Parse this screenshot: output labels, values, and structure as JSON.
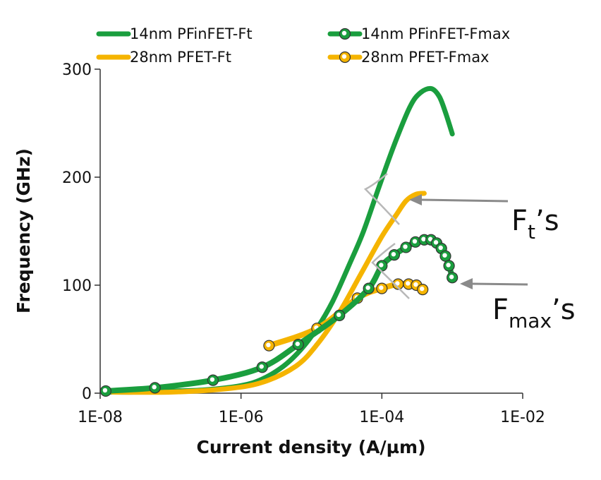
{
  "chart_data": {
    "type": "line",
    "xscale": "log",
    "xlim": [
      "1E-08",
      "1E-02"
    ],
    "ylim": [
      0,
      300
    ],
    "xlabel": "Current density (A/µm)",
    "ylabel": "Frequency (GHz)",
    "xticks": [
      "1E-08",
      "1E-06",
      "1E-04",
      "1E-02"
    ],
    "yticks": [
      "0",
      "100",
      "200",
      "300"
    ],
    "grid": false,
    "legend_position": "top",
    "series": [
      {
        "name": "14nm PFinFET-Ft",
        "color": "#1a9e3e",
        "markers": false,
        "x": [
          1.2e-08,
          3e-08,
          1e-07,
          3e-07,
          1e-06,
          2e-06,
          4e-06,
          7e-06,
          1.2e-05,
          2e-05,
          3.5e-05,
          5.5e-05,
          9e-05,
          0.00015,
          0.00025,
          0.00035,
          0.0005,
          0.00065,
          0.0008,
          0.001
        ],
        "y": [
          1,
          1,
          2,
          3,
          7,
          13,
          25,
          40,
          60,
          85,
          120,
          150,
          190,
          230,
          265,
          278,
          282,
          275,
          260,
          240
        ]
      },
      {
        "name": "14nm PFinFET-Fmax",
        "color": "#1a9e3e",
        "markers": true,
        "x": [
          1.2e-08,
          6e-08,
          4e-07,
          2e-06,
          6.5e-06,
          2.5e-05,
          6.5e-05,
          0.0001,
          0.00015,
          0.00022,
          0.0003,
          0.0004,
          0.0005,
          0.0006,
          0.0007,
          0.0008,
          0.0009,
          0.001
        ],
        "y": [
          2,
          5,
          12,
          24,
          45,
          72,
          97,
          118,
          128,
          135,
          140,
          142,
          142,
          139,
          134,
          127,
          118,
          107
        ]
      },
      {
        "name": "28nm PFET-Ft",
        "color": "#f5b400",
        "markers": false,
        "x": [
          1.5e-08,
          1e-07,
          6e-07,
          2e-06,
          6e-06,
          1.2e-05,
          2.5e-05,
          5e-05,
          0.0001,
          0.00016,
          0.00022,
          0.0003,
          0.0004
        ],
        "y": [
          1,
          1,
          4,
          10,
          25,
          45,
          75,
          110,
          145,
          165,
          178,
          184,
          185
        ]
      },
      {
        "name": "28nm PFET-Fmax",
        "color": "#f5b400",
        "markers": true,
        "x": [
          2.5e-06,
          1.2e-05,
          4.5e-05,
          0.0001,
          0.00017,
          0.00024,
          0.00031,
          0.00038
        ],
        "y": [
          44,
          60,
          88,
          97,
          101,
          101,
          100,
          96
        ]
      }
    ],
    "annotations": [
      {
        "main": "F",
        "sub": "t",
        "suffix": "’s"
      },
      {
        "main": "F",
        "sub": "max",
        "suffix": "’s"
      }
    ]
  }
}
